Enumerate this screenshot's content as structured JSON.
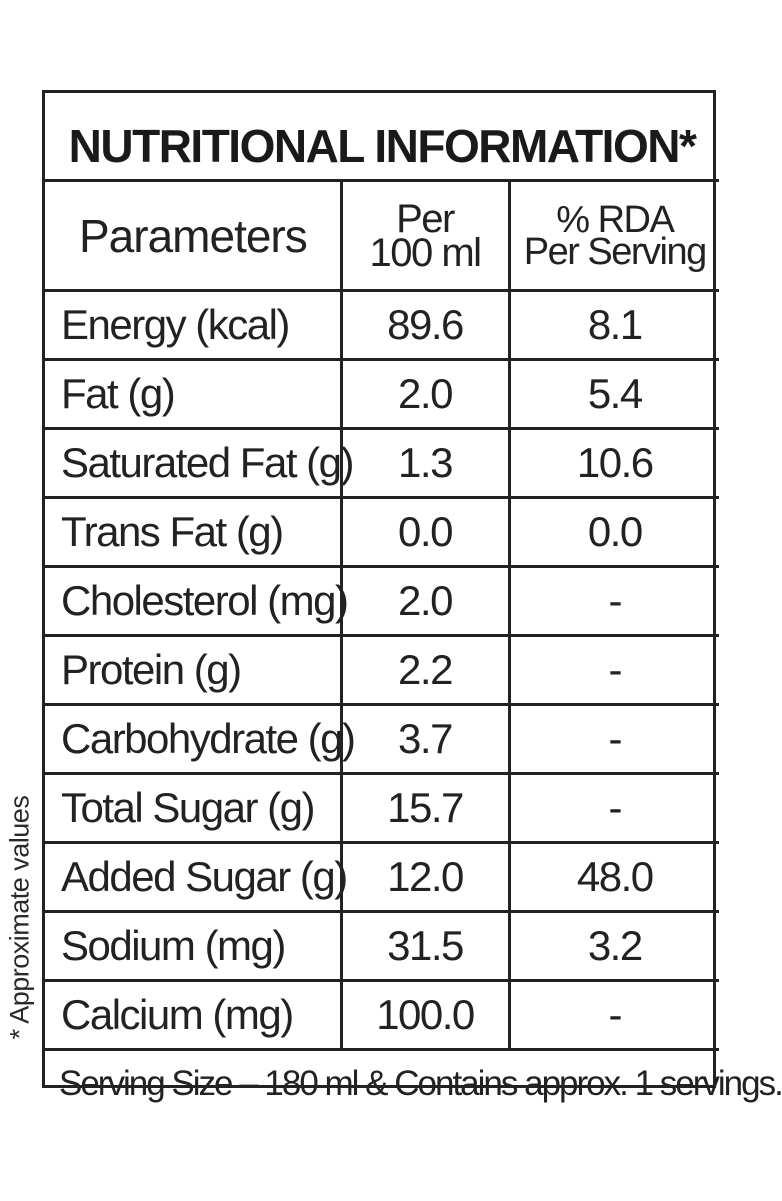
{
  "side_note": "* Approximate values",
  "title": "NUTRITIONAL INFORMATION*",
  "headers": {
    "parameters": "Parameters",
    "per_line1": "Per",
    "per_line2": "100 ml",
    "rda_line1": "% RDA",
    "rda_line2": "Per Serving"
  },
  "rows": [
    {
      "name": "Energy (kcal)",
      "per100": "89.6",
      "rda": "8.1"
    },
    {
      "name": "Fat (g)",
      "per100": "2.0",
      "rda": "5.4"
    },
    {
      "name": "Saturated Fat (g)",
      "per100": "1.3",
      "rda": "10.6"
    },
    {
      "name": "Trans Fat (g)",
      "per100": "0.0",
      "rda": "0.0"
    },
    {
      "name": "Cholesterol (mg)",
      "per100": "2.0",
      "rda": "-"
    },
    {
      "name": "Protein (g)",
      "per100": "2.2",
      "rda": "-"
    },
    {
      "name": "Carbohydrate (g)",
      "per100": "3.7",
      "rda": "-"
    },
    {
      "name": "Total Sugar (g)",
      "per100": "15.7",
      "rda": "-"
    },
    {
      "name": "Added Sugar (g)",
      "per100": "12.0",
      "rda": "48.0"
    },
    {
      "name": "Sodium (mg)",
      "per100": "31.5",
      "rda": "3.2"
    },
    {
      "name": "Calcium (mg)",
      "per100": "100.0",
      "rda": "-"
    }
  ],
  "footer": "Serving Size – 180 ml & Contains approx. 1 servings."
}
